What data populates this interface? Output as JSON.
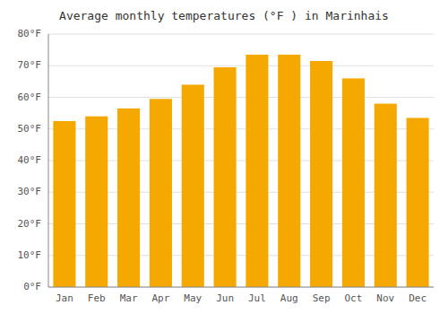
{
  "chart_data": {
    "type": "bar",
    "title": "Average monthly temperatures (°F ) in Marinhais",
    "categories": [
      "Jan",
      "Feb",
      "Mar",
      "Apr",
      "May",
      "Jun",
      "Jul",
      "Aug",
      "Sep",
      "Oct",
      "Nov",
      "Dec"
    ],
    "values": [
      52.5,
      54.0,
      56.5,
      59.5,
      64.0,
      69.5,
      73.5,
      73.5,
      71.5,
      66.0,
      58.0,
      53.5
    ],
    "color": "#F5A800",
    "ylim": [
      0,
      80
    ],
    "yticks": [
      {
        "value": 0,
        "label": "0°F"
      },
      {
        "value": 10,
        "label": "10°F"
      },
      {
        "value": 20,
        "label": "20°F"
      },
      {
        "value": 30,
        "label": "30°F"
      },
      {
        "value": 40,
        "label": "40°F"
      },
      {
        "value": 50,
        "label": "50°F"
      },
      {
        "value": 60,
        "label": "60°F"
      },
      {
        "value": 70,
        "label": "70°F"
      },
      {
        "value": 80,
        "label": "80°F"
      }
    ],
    "grid": true
  }
}
